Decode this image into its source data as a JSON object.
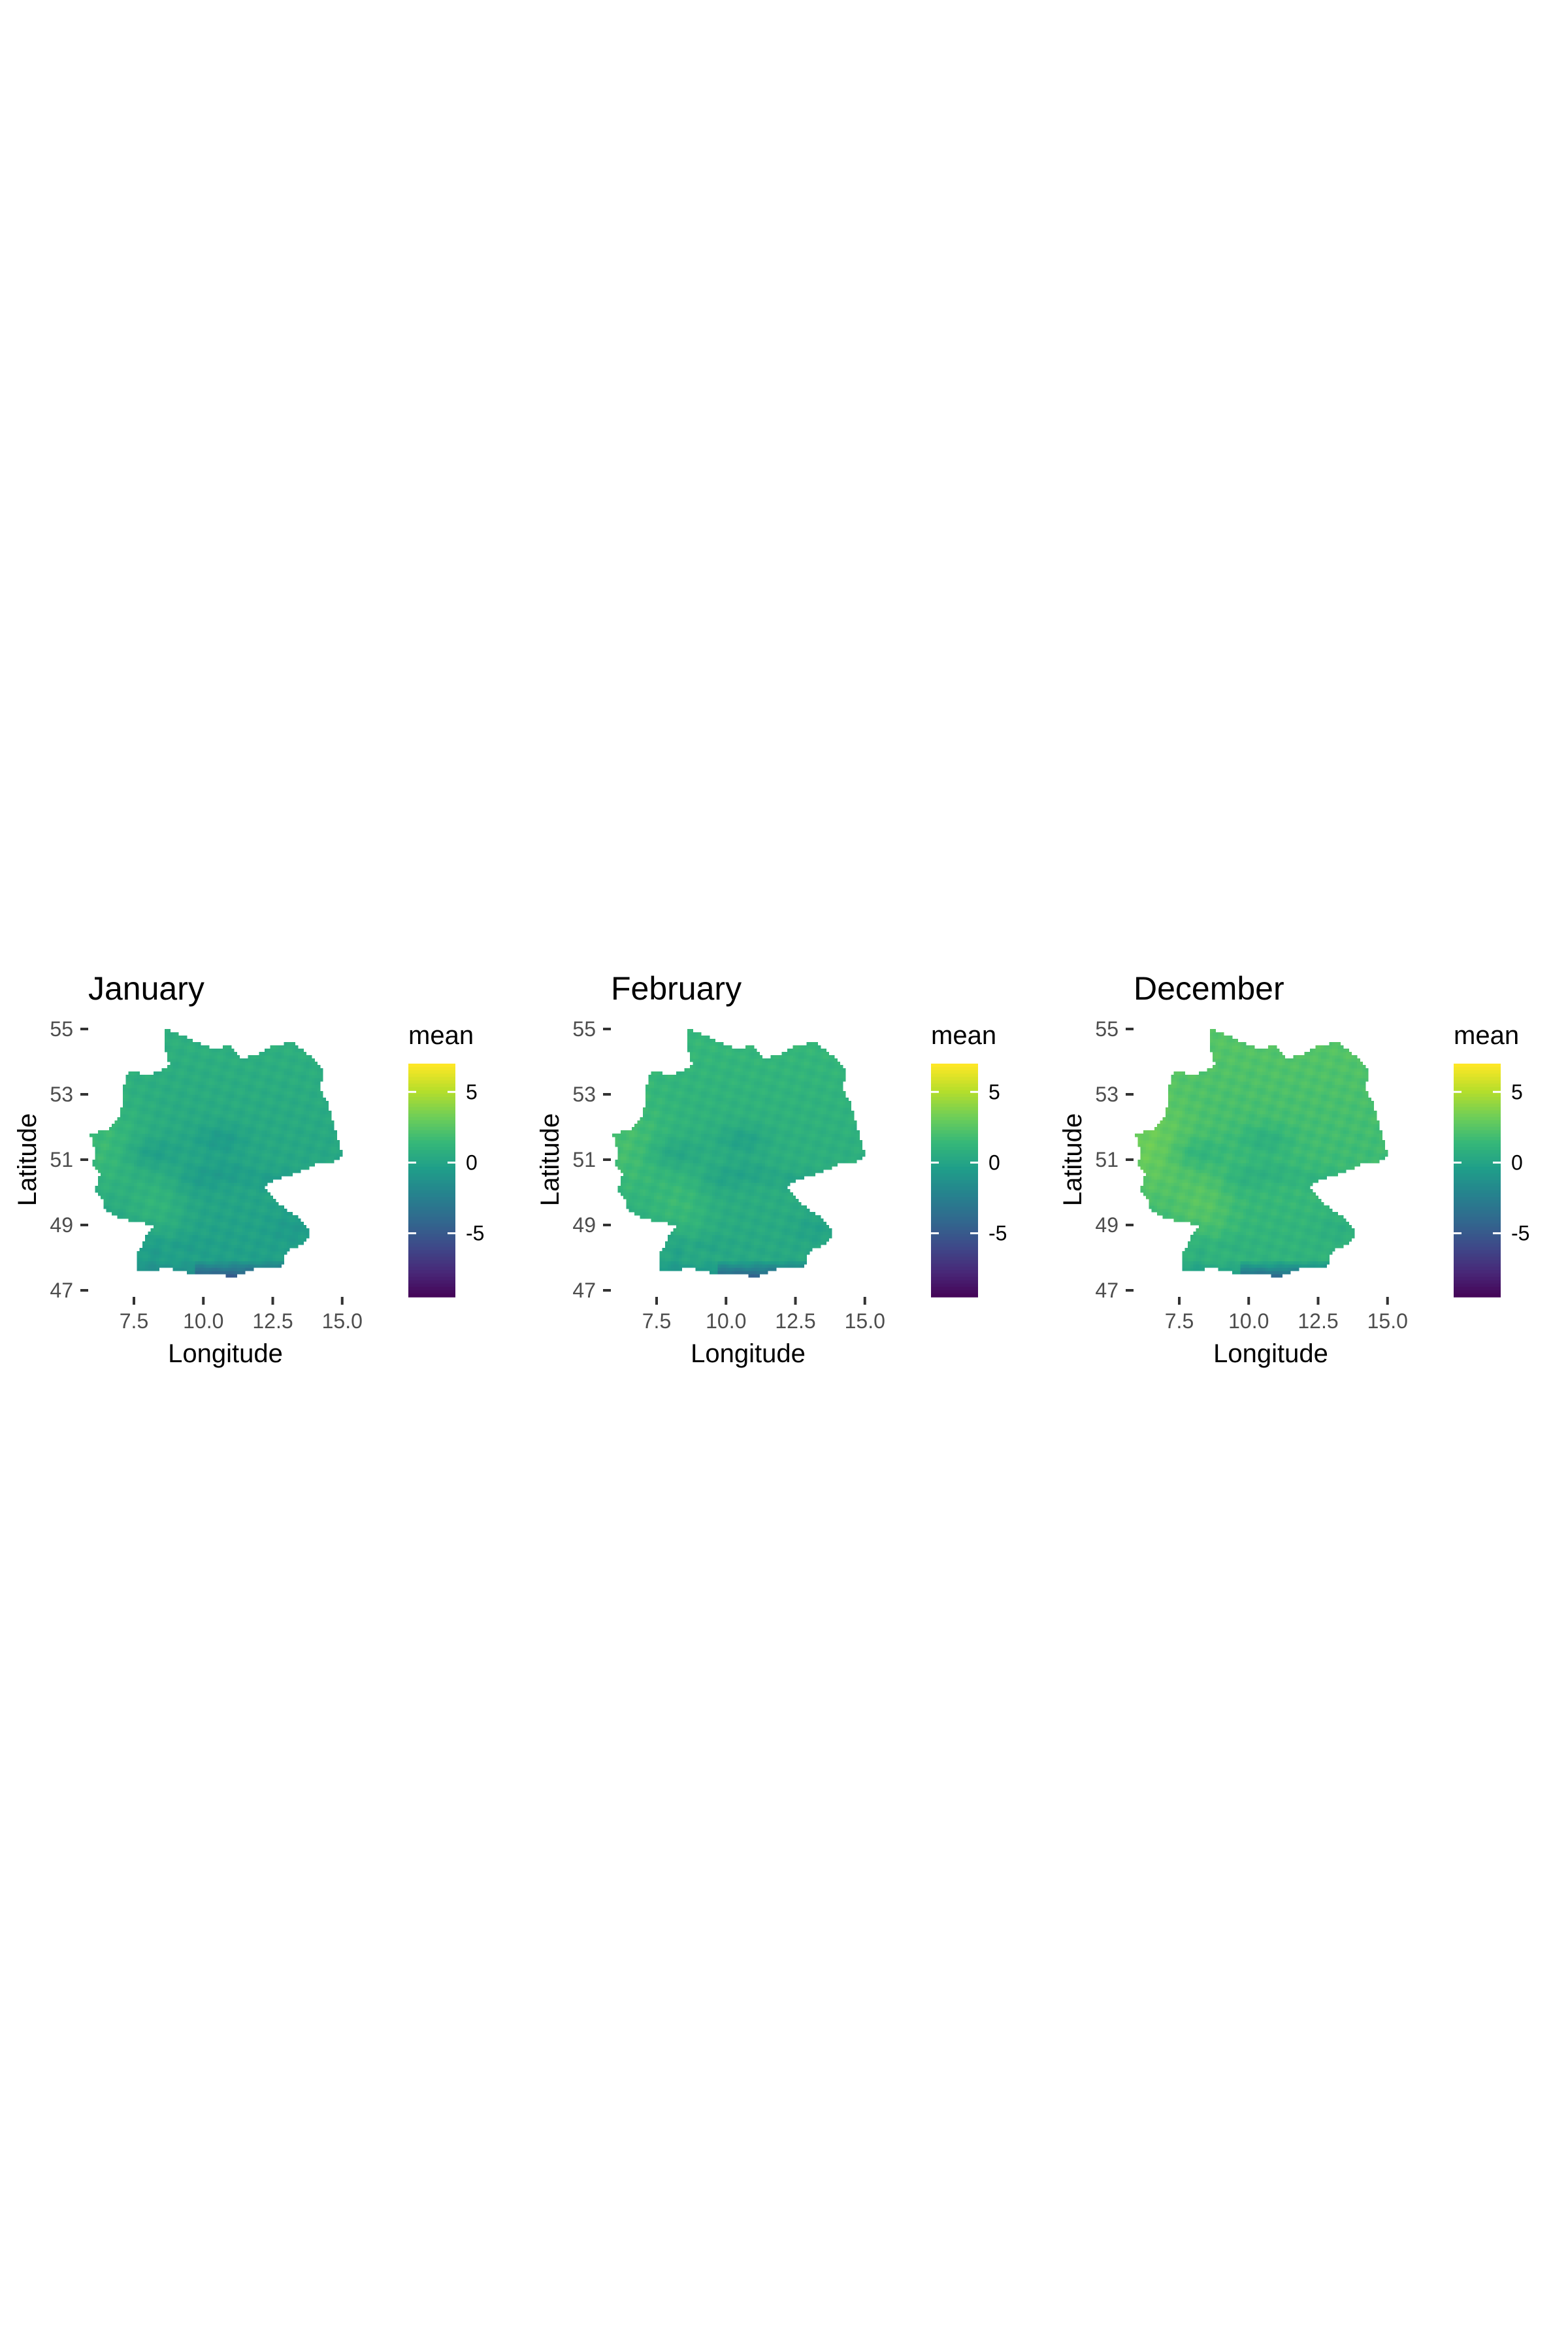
{
  "chart_data": [
    {
      "type": "heatmap",
      "title": "January",
      "xlabel": "Longitude",
      "ylabel": "Latitude",
      "xticks": [
        "7.5",
        "10.0",
        "12.5",
        "15.0"
      ],
      "yticks": [
        "47",
        "49",
        "51",
        "53",
        "55"
      ],
      "xlim": [
        5.5,
        15.5
      ],
      "ylim": [
        47,
        55
      ],
      "legend": {
        "title": "mean",
        "ticks": [
          "5",
          "0",
          "-5"
        ],
        "range": [
          -9.5,
          7
        ]
      },
      "regional_means": {
        "north": 1.0,
        "west_lowland": 2.5,
        "central_uplands": -1.2,
        "southwest": 2.0,
        "south": -0.3,
        "alps": -4.5
      }
    },
    {
      "type": "heatmap",
      "title": "February",
      "xlabel": "Longitude",
      "ylabel": "Latitude",
      "xticks": [
        "7.5",
        "10.0",
        "12.5",
        "15.0"
      ],
      "yticks": [
        "47",
        "49",
        "51",
        "53",
        "55"
      ],
      "xlim": [
        5.5,
        15.5
      ],
      "ylim": [
        47,
        55
      ],
      "legend": {
        "title": "mean",
        "ticks": [
          "5",
          "0",
          "-5"
        ],
        "range": [
          -9.5,
          7
        ]
      },
      "regional_means": {
        "north": 1.5,
        "west_lowland": 2.8,
        "central_uplands": -0.8,
        "southwest": 2.3,
        "south": 0.3,
        "alps": -4.0
      }
    },
    {
      "type": "heatmap",
      "title": "December",
      "xlabel": "Longitude",
      "ylabel": "Latitude",
      "xticks": [
        "7.5",
        "10.0",
        "12.5",
        "15.0"
      ],
      "yticks": [
        "47",
        "49",
        "51",
        "53",
        "55"
      ],
      "xlim": [
        5.5,
        15.5
      ],
      "ylim": [
        47,
        55
      ],
      "legend": {
        "title": "mean",
        "ticks": [
          "5",
          "0",
          "-5"
        ],
        "range": [
          -9.5,
          7
        ]
      },
      "regional_means": {
        "north": 2.6,
        "west_lowland": 4.2,
        "central_uplands": 0.2,
        "southwest": 3.3,
        "south": 1.0,
        "alps": -3.5
      }
    }
  ],
  "colors": {
    "viridis": [
      "#440154",
      "#482878",
      "#3e4989",
      "#31688e",
      "#26828e",
      "#1f9e89",
      "#35b779",
      "#6ece58",
      "#b5de2b",
      "#fde725"
    ],
    "tick_color": "#333333",
    "tick_label_color": "#4d4d4d"
  }
}
